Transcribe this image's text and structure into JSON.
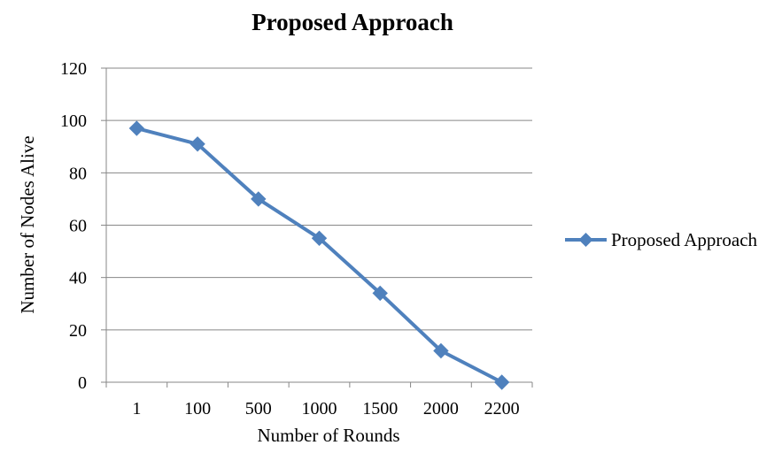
{
  "chart_data": {
    "type": "line",
    "title": "Proposed Approach",
    "xlabel": "Number of Rounds",
    "ylabel": "Number of Nodes Alive",
    "categories": [
      "1",
      "100",
      "500",
      "1000",
      "1500",
      "2000",
      "2200"
    ],
    "series": [
      {
        "name": "Proposed Approach",
        "values": [
          97,
          91,
          70,
          55,
          34,
          12,
          0
        ]
      }
    ],
    "ylim": [
      0,
      120
    ],
    "yticks": [
      "0",
      "20",
      "40",
      "60",
      "80",
      "100",
      "120"
    ],
    "grid": true,
    "legend": "right",
    "marker": "diamond",
    "colors": {
      "series": "#4f81bd",
      "grid": "#878787",
      "axis": "#878787"
    }
  }
}
